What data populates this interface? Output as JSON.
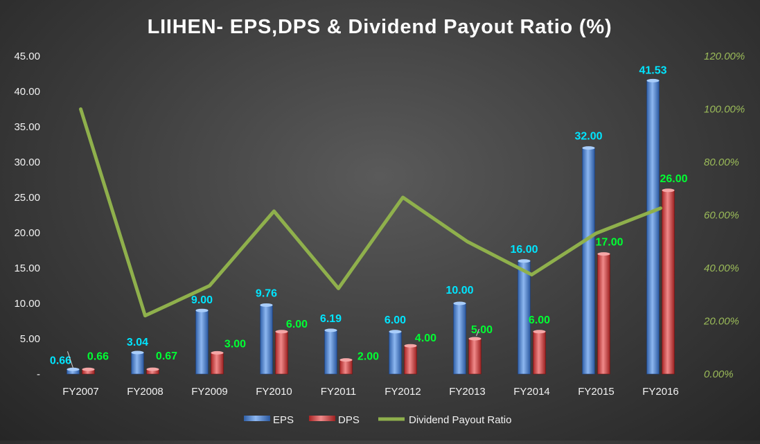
{
  "chart_data": {
    "type": "bar",
    "title": "LIIHEN- EPS,DPS & Dividend Payout Ratio (%)",
    "categories": [
      "FY2007",
      "FY2008",
      "FY2009",
      "FY2010",
      "FY2011",
      "FY2012",
      "FY2013",
      "FY2014",
      "FY2015",
      "FY2016"
    ],
    "series": [
      {
        "name": "EPS",
        "kind": "bar",
        "axis": "left",
        "color": "#4f86d4",
        "values": [
          0.66,
          3.04,
          9.0,
          9.76,
          6.19,
          6.0,
          10.0,
          16.0,
          32.0,
          41.53
        ],
        "labels": [
          "0.66",
          "3.04",
          "9.00",
          "9.76",
          "6.19",
          "6.00",
          "10.00",
          "16.00",
          "32.00",
          "41.53"
        ],
        "label_color": "#00e5ff"
      },
      {
        "name": "DPS",
        "kind": "bar",
        "axis": "left",
        "color": "#d64545",
        "values": [
          0.66,
          0.67,
          3.0,
          6.0,
          2.0,
          4.0,
          5.0,
          6.0,
          17.0,
          26.0
        ],
        "labels": [
          "0.66",
          "0.67",
          "3.00",
          "6.00",
          "2.00",
          "4.00",
          "5.00",
          "6.00",
          "17.00",
          "26.00"
        ],
        "label_color": "#00ff33"
      },
      {
        "name": "Dividend Payout Ratio",
        "kind": "line",
        "axis": "right",
        "color": "#8fb04c",
        "values": [
          1.0,
          0.2204,
          0.3333,
          0.6148,
          0.3231,
          0.6667,
          0.5,
          0.375,
          0.5313,
          0.626
        ]
      }
    ],
    "y_left": {
      "min": 0,
      "max": 45,
      "step": 5,
      "tick_labels": [
        "-",
        "5.00",
        "10.00",
        "15.00",
        "20.00",
        "25.00",
        "30.00",
        "35.00",
        "40.00",
        "45.00"
      ],
      "color": "#f2f2f2"
    },
    "y_right": {
      "min": 0,
      "max": 1.2,
      "step": 0.2,
      "tick_labels": [
        "0.00%",
        "20.00%",
        "40.00%",
        "60.00%",
        "80.00%",
        "100.00%",
        "120.00%"
      ],
      "color": "#9bbb59"
    },
    "legend": {
      "position": "bottom",
      "items": [
        {
          "label": "EPS",
          "type": "bar",
          "color": "#4f86d4"
        },
        {
          "label": "DPS",
          "type": "bar",
          "color": "#d64545"
        },
        {
          "label": "Dividend Payout Ratio",
          "type": "line",
          "color": "#8fb04c"
        }
      ]
    },
    "grid": false
  }
}
